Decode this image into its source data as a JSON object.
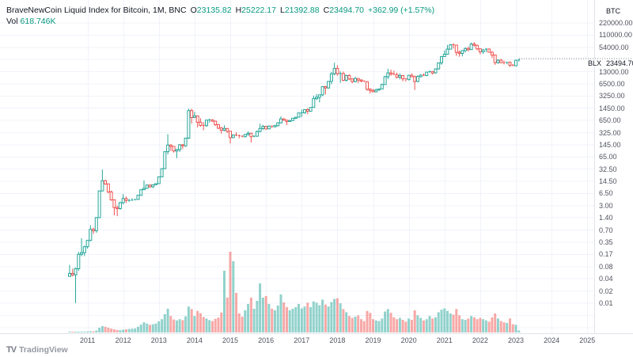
{
  "header": {
    "title": "BraveNewCoin Liquid Index for Bitcoin, 1M, BNC",
    "ohlc": [
      {
        "label": "O",
        "value": "23135.82"
      },
      {
        "label": "H",
        "value": "25222.17"
      },
      {
        "label": "L",
        "value": "21392.88"
      },
      {
        "label": "C",
        "value": "23494.70"
      }
    ],
    "change": "+362.99 (+1.57%)",
    "vol_label": "Vol",
    "vol_value": "618.746K"
  },
  "price_scale": {
    "currency": "BTC",
    "ticks": [
      "220000.00",
      "110000.00",
      "54000.00",
      "",
      "13000.00",
      "6500.00",
      "3250.00",
      "1450.00",
      "650.00",
      "325.00",
      "145.00",
      "65.00",
      "32.50",
      "14.50",
      "6.50",
      "3.00",
      "1.40",
      "0.70",
      "0.35",
      "0.17",
      "0.08",
      "0.04",
      "0.02",
      "0.01"
    ],
    "price_label": {
      "series": "BLX",
      "value": "23494.70"
    }
  },
  "time_scale": {
    "years": [
      "2011",
      "2012",
      "2013",
      "2014",
      "2015",
      "2016",
      "2017",
      "2018",
      "2019",
      "2020",
      "2021",
      "2022",
      "2023",
      "2024",
      "2025"
    ]
  },
  "watermark": {
    "logo": "TV",
    "text": "TradingView"
  },
  "colors": {
    "up": "#26a69a",
    "down": "#ef5350",
    "vol_up": "rgba(38,166,154,0.5)",
    "vol_down": "rgba(239,83,80,0.5)",
    "grid": "#f0f3fa",
    "axis_border": "#e0e3eb",
    "accent": "#089981",
    "price_line": "#888c96"
  },
  "chart_data": {
    "type": "candlestick+volume",
    "symbol": "BLX",
    "interval": "1M",
    "scale": "log",
    "ylabel": "BTC price",
    "volume_unit": "K",
    "last_price": 23494.7,
    "months": [
      [
        "2010-07",
        0.05,
        0.1,
        0.05,
        0.06,
        1
      ],
      [
        "2010-08",
        0.06,
        0.08,
        0.05,
        0.055,
        1
      ],
      [
        "2010-09",
        0.055,
        0.085,
        0.01,
        0.08,
        2
      ],
      [
        "2010-10",
        0.08,
        0.22,
        0.07,
        0.19,
        5
      ],
      [
        "2010-11",
        0.19,
        0.5,
        0.17,
        0.21,
        8
      ],
      [
        "2010-12",
        0.21,
        0.32,
        0.17,
        0.3,
        10
      ],
      [
        "2011-01",
        0.3,
        0.45,
        0.27,
        0.44,
        300
      ],
      [
        "2011-02",
        0.44,
        1.1,
        0.42,
        0.86,
        400
      ],
      [
        "2011-03",
        0.86,
        0.95,
        0.65,
        0.79,
        350
      ],
      [
        "2011-04",
        0.79,
        1.8,
        0.7,
        1.74,
        600
      ],
      [
        "2011-05",
        1.74,
        8.9,
        1.7,
        8.7,
        1500
      ],
      [
        "2011-06",
        8.7,
        31.5,
        8.5,
        16.1,
        2000
      ],
      [
        "2011-07",
        16.1,
        17.0,
        12.5,
        13.3,
        1800
      ],
      [
        "2011-08",
        13.3,
        13.5,
        7.5,
        8.2,
        1500
      ],
      [
        "2011-09",
        8.2,
        8.9,
        4.8,
        5.1,
        1200
      ],
      [
        "2011-10",
        5.1,
        5.2,
        2.0,
        3.2,
        1000
      ],
      [
        "2011-11",
        3.2,
        3.6,
        1.9,
        3.0,
        800
      ],
      [
        "2011-12",
        3.0,
        4.5,
        2.8,
        4.3,
        700
      ],
      [
        "2012-01",
        4.3,
        7.2,
        3.9,
        5.5,
        900
      ],
      [
        "2012-02",
        5.5,
        6.2,
        4.2,
        4.9,
        1000
      ],
      [
        "2012-03",
        4.9,
        5.4,
        4.5,
        4.9,
        1100
      ],
      [
        "2012-04",
        4.9,
        5.6,
        4.8,
        5.0,
        1200
      ],
      [
        "2012-05",
        5.0,
        5.3,
        4.9,
        5.2,
        1300
      ],
      [
        "2012-06",
        5.2,
        6.9,
        5.1,
        6.7,
        1800
      ],
      [
        "2012-07",
        6.7,
        9.5,
        6.5,
        9.4,
        2500
      ],
      [
        "2012-08",
        9.4,
        16.4,
        9.2,
        10.2,
        3200
      ],
      [
        "2012-09",
        10.2,
        12.9,
        9.9,
        12.4,
        2800
      ],
      [
        "2012-10",
        12.4,
        12.8,
        10.5,
        11.2,
        2400
      ],
      [
        "2012-11",
        11.2,
        12.8,
        10.4,
        12.6,
        2600
      ],
      [
        "2012-12",
        12.6,
        13.9,
        12.3,
        13.5,
        2800
      ],
      [
        "2013-01",
        13.5,
        20.6,
        13.2,
        20.4,
        3500
      ],
      [
        "2013-02",
        20.4,
        34.5,
        19.9,
        33.4,
        4200
      ],
      [
        "2013-03",
        33.4,
        94.0,
        33.0,
        93.0,
        5800
      ],
      [
        "2013-04",
        93.0,
        266,
        79,
        139,
        7500
      ],
      [
        "2013-05",
        139,
        146,
        97,
        128,
        5200
      ],
      [
        "2013-06",
        128,
        130,
        88,
        97,
        4100
      ],
      [
        "2013-07",
        97,
        110,
        63,
        106,
        3800
      ],
      [
        "2013-08",
        106,
        147,
        92,
        141,
        4200
      ],
      [
        "2013-09",
        141,
        147,
        109,
        133,
        3900
      ],
      [
        "2013-10",
        133,
        217,
        124,
        211,
        5100
      ],
      [
        "2013-11",
        211,
        1242,
        200,
        1113,
        8200
      ],
      [
        "2013-12",
        1113,
        1240,
        511,
        732,
        7400
      ],
      [
        "2014-01",
        732,
        1030,
        701,
        806,
        5200
      ],
      [
        "2014-02",
        806,
        830,
        400,
        550,
        6800
      ],
      [
        "2014-03",
        550,
        700,
        420,
        454,
        6100
      ],
      [
        "2014-04",
        454,
        550,
        340,
        446,
        4900
      ],
      [
        "2014-05",
        446,
        630,
        420,
        627,
        4400
      ],
      [
        "2014-06",
        627,
        680,
        540,
        635,
        3900
      ],
      [
        "2014-07",
        635,
        660,
        560,
        589,
        3600
      ],
      [
        "2014-08",
        589,
        600,
        440,
        478,
        4300
      ],
      [
        "2014-09",
        478,
        490,
        365,
        386,
        4700
      ],
      [
        "2014-10",
        386,
        420,
        275,
        338,
        6300
      ],
      [
        "2014-11",
        338,
        460,
        320,
        378,
        19500
      ],
      [
        "2014-12",
        378,
        385,
        285,
        320,
        11000
      ],
      [
        "2015-01",
        320,
        325,
        152,
        217,
        25500
      ],
      [
        "2015-02",
        217,
        265,
        210,
        254,
        22500
      ],
      [
        "2015-03",
        254,
        300,
        236,
        244,
        12500
      ],
      [
        "2015-04",
        244,
        262,
        210,
        236,
        6000
      ],
      [
        "2015-05",
        236,
        248,
        222,
        230,
        5000
      ],
      [
        "2015-06",
        230,
        268,
        219,
        263,
        7000
      ],
      [
        "2015-07",
        263,
        316,
        245,
        284,
        9000
      ],
      [
        "2015-08",
        284,
        288,
        162,
        230,
        11000
      ],
      [
        "2015-09",
        230,
        248,
        223,
        236,
        7500
      ],
      [
        "2015-10",
        236,
        334,
        233,
        314,
        10000
      ],
      [
        "2015-11",
        314,
        504,
        300,
        377,
        15500
      ],
      [
        "2015-12",
        377,
        470,
        345,
        430,
        11000
      ],
      [
        "2016-01",
        430,
        437,
        351,
        368,
        11500
      ],
      [
        "2016-02",
        368,
        448,
        365,
        437,
        9000
      ],
      [
        "2016-03",
        437,
        440,
        383,
        416,
        7500
      ],
      [
        "2016-04",
        416,
        470,
        410,
        448,
        7000
      ],
      [
        "2016-05",
        448,
        550,
        425,
        531,
        8500
      ],
      [
        "2016-06",
        531,
        780,
        510,
        673,
        12000
      ],
      [
        "2016-07",
        673,
        705,
        600,
        624,
        9500
      ],
      [
        "2016-08",
        624,
        630,
        465,
        575,
        8000
      ],
      [
        "2016-09",
        575,
        630,
        565,
        609,
        7000
      ],
      [
        "2016-10",
        609,
        710,
        605,
        700,
        7500
      ],
      [
        "2016-11",
        700,
        755,
        665,
        745,
        8000
      ],
      [
        "2016-12",
        745,
        980,
        740,
        963,
        9000
      ],
      [
        "2017-01",
        963,
        1180,
        750,
        970,
        7600
      ],
      [
        "2017-02",
        970,
        1200,
        920,
        1179,
        8200
      ],
      [
        "2017-03",
        1179,
        1290,
        890,
        1071,
        9400
      ],
      [
        "2017-04",
        1071,
        1350,
        1060,
        1347,
        8000
      ],
      [
        "2017-05",
        1347,
        2760,
        1340,
        2286,
        9800
      ],
      [
        "2017-06",
        2286,
        2990,
        2100,
        2480,
        9400
      ],
      [
        "2017-07",
        2480,
        2920,
        1830,
        2875,
        8600
      ],
      [
        "2017-08",
        2875,
        4750,
        2650,
        4703,
        10400
      ],
      [
        "2017-09",
        4703,
        4940,
        2950,
        4360,
        8800
      ],
      [
        "2017-10",
        4360,
        6480,
        4150,
        6468,
        8200
      ],
      [
        "2017-11",
        6468,
        11400,
        5430,
        10233,
        9600
      ],
      [
        "2017-12",
        10233,
        19870,
        9380,
        14156,
        10600
      ],
      [
        "2018-01",
        14156,
        17230,
        9200,
        10221,
        10800
      ],
      [
        "2018-02",
        10221,
        11790,
        5920,
        10397,
        9200
      ],
      [
        "2018-03",
        10397,
        11700,
        6550,
        6938,
        7400
      ],
      [
        "2018-04",
        6938,
        9760,
        6430,
        9240,
        6400
      ],
      [
        "2018-05",
        9240,
        9990,
        7060,
        7494,
        5200
      ],
      [
        "2018-06",
        7494,
        7750,
        5780,
        6404,
        4600
      ],
      [
        "2018-07",
        6404,
        8500,
        6070,
        7729,
        5000
      ],
      [
        "2018-08",
        7729,
        7770,
        5860,
        7033,
        5400
      ],
      [
        "2018-09",
        7033,
        7410,
        6120,
        6625,
        4200
      ],
      [
        "2018-10",
        6625,
        6760,
        6200,
        6317,
        3600
      ],
      [
        "2018-11",
        6317,
        6540,
        3650,
        4017,
        6800
      ],
      [
        "2018-12",
        4017,
        4310,
        3150,
        3742,
        6200
      ],
      [
        "2019-01",
        3742,
        4110,
        3350,
        3457,
        4200
      ],
      [
        "2019-02",
        3457,
        4200,
        3350,
        3854,
        3800
      ],
      [
        "2019-03",
        3854,
        4150,
        3660,
        4105,
        3600
      ],
      [
        "2019-04",
        4105,
        5650,
        4050,
        5350,
        4400
      ],
      [
        "2019-05",
        5350,
        9070,
        5330,
        8574,
        6600
      ],
      [
        "2019-06",
        8574,
        13880,
        7450,
        10817,
        7400
      ],
      [
        "2019-07",
        10817,
        13200,
        9070,
        10085,
        6200
      ],
      [
        "2019-08",
        10085,
        12330,
        9360,
        9630,
        4800
      ],
      [
        "2019-09",
        9630,
        10950,
        7700,
        8308,
        4200
      ],
      [
        "2019-10",
        8308,
        10540,
        7290,
        9199,
        4600
      ],
      [
        "2019-11",
        9199,
        9520,
        6515,
        7569,
        4000
      ],
      [
        "2019-12",
        7569,
        7750,
        6430,
        7193,
        3400
      ],
      [
        "2020-01",
        7193,
        9580,
        6850,
        9350,
        4400
      ],
      [
        "2020-02",
        9350,
        10500,
        8400,
        8599,
        4000
      ],
      [
        "2020-03",
        8599,
        9200,
        3870,
        6438,
        7000
      ],
      [
        "2020-04",
        6438,
        9460,
        6140,
        8658,
        5400
      ],
      [
        "2020-05",
        8658,
        10070,
        8110,
        9461,
        4600
      ],
      [
        "2020-06",
        9461,
        10380,
        8830,
        9137,
        3800
      ],
      [
        "2020-07",
        9137,
        11450,
        8900,
        11323,
        4200
      ],
      [
        "2020-08",
        11323,
        12480,
        10940,
        11680,
        5200
      ],
      [
        "2020-09",
        11680,
        12050,
        9820,
        10784,
        4400
      ],
      [
        "2020-10",
        10784,
        14100,
        10400,
        13780,
        4800
      ],
      [
        "2020-11",
        13780,
        19860,
        13200,
        19698,
        6400
      ],
      [
        "2020-12",
        19698,
        29300,
        17600,
        28990,
        7200
      ],
      [
        "2021-01",
        28990,
        41950,
        28150,
        33141,
        7600
      ],
      [
        "2021-02",
        33141,
        58350,
        32380,
        45240,
        6800
      ],
      [
        "2021-03",
        45240,
        61780,
        44950,
        58788,
        6000
      ],
      [
        "2021-04",
        58788,
        64850,
        46950,
        57750,
        5600
      ],
      [
        "2021-05",
        57750,
        59500,
        30000,
        37333,
        7400
      ],
      [
        "2021-06",
        37333,
        41330,
        28800,
        35041,
        5400
      ],
      [
        "2021-07",
        35041,
        42230,
        29300,
        41553,
        4200
      ],
      [
        "2021-08",
        41553,
        50500,
        37330,
        47130,
        4000
      ],
      [
        "2021-09",
        47130,
        52920,
        39600,
        43790,
        4400
      ],
      [
        "2021-10",
        43790,
        66930,
        43290,
        61318,
        5200
      ],
      [
        "2021-11",
        61318,
        68990,
        53300,
        57005,
        4800
      ],
      [
        "2021-12",
        57005,
        59050,
        42330,
        46219,
        4200
      ],
      [
        "2022-01",
        46219,
        47990,
        32950,
        38483,
        4600
      ],
      [
        "2022-02",
        38483,
        45820,
        34300,
        43193,
        4200
      ],
      [
        "2022-03",
        43193,
        48190,
        37580,
        45539,
        3800
      ],
      [
        "2022-04",
        45539,
        47440,
        37630,
        37630,
        3400
      ],
      [
        "2022-05",
        37630,
        40020,
        26700,
        31793,
        4800
      ],
      [
        "2022-06",
        31793,
        31960,
        17600,
        19985,
        6000
      ],
      [
        "2022-07",
        19985,
        24670,
        18780,
        23336,
        4400
      ],
      [
        "2022-08",
        23336,
        25210,
        19520,
        20049,
        3600
      ],
      [
        "2022-09",
        20049,
        22800,
        18120,
        19426,
        3200
      ],
      [
        "2022-10",
        19426,
        21080,
        18190,
        20495,
        3000
      ],
      [
        "2022-11",
        20495,
        21480,
        15480,
        17168,
        4400
      ],
      [
        "2022-12",
        17168,
        18390,
        16260,
        16547,
        2600
      ],
      [
        "2023-01",
        16547,
        23960,
        16490,
        23130,
        2400
      ],
      [
        "2023-02",
        23135.82,
        25222.17,
        21392.88,
        23494.7,
        618.746
      ]
    ]
  }
}
